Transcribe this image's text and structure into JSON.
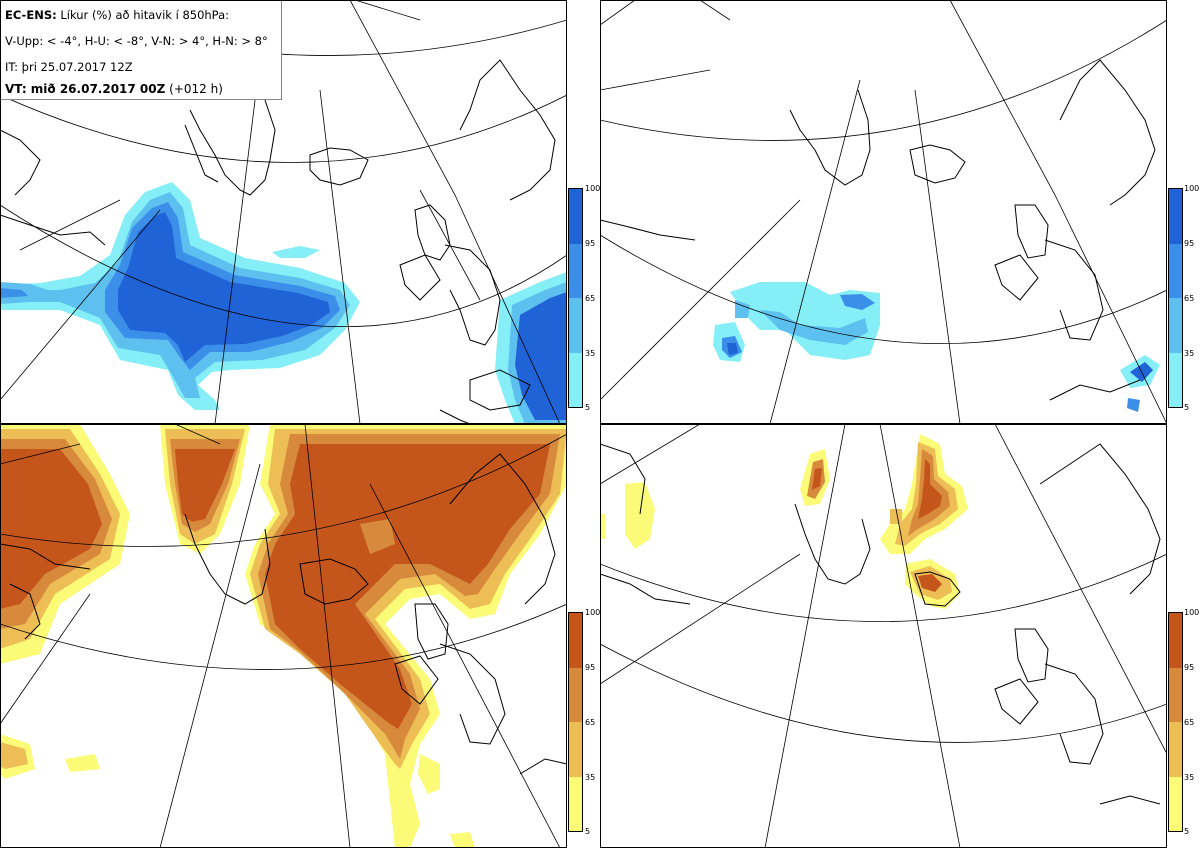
{
  "legend": {
    "title_bold": "EC-ENS:",
    "title_rest": "Líkur (%) að hitavik í 850hPa:",
    "line2": "V-Upp: < -4°, H-U: < -8°, V-N: > 4°, H-N: > 8°",
    "line3": "IT: þri 25.07.2017 12Z",
    "line4_bold": "VT: mið 26.07.2017 00Z",
    "line4_rest": "(+012 h)"
  },
  "panels": [
    {
      "id": "V-Upp",
      "palette": "blue"
    },
    {
      "id": "H-U",
      "palette": "blue"
    },
    {
      "id": "V-N",
      "palette": "orange"
    },
    {
      "id": "H-N",
      "palette": "orange"
    }
  ],
  "colorbar": {
    "ticks": [
      "100",
      "95",
      "65",
      "35",
      "5"
    ],
    "blue": [
      "#1f63d6",
      "#3c8fe8",
      "#5ec0ee",
      "#85eef7"
    ],
    "orange": [
      "#c4561c",
      "#d88a3c",
      "#edbe55",
      "#fbfb78"
    ]
  }
}
